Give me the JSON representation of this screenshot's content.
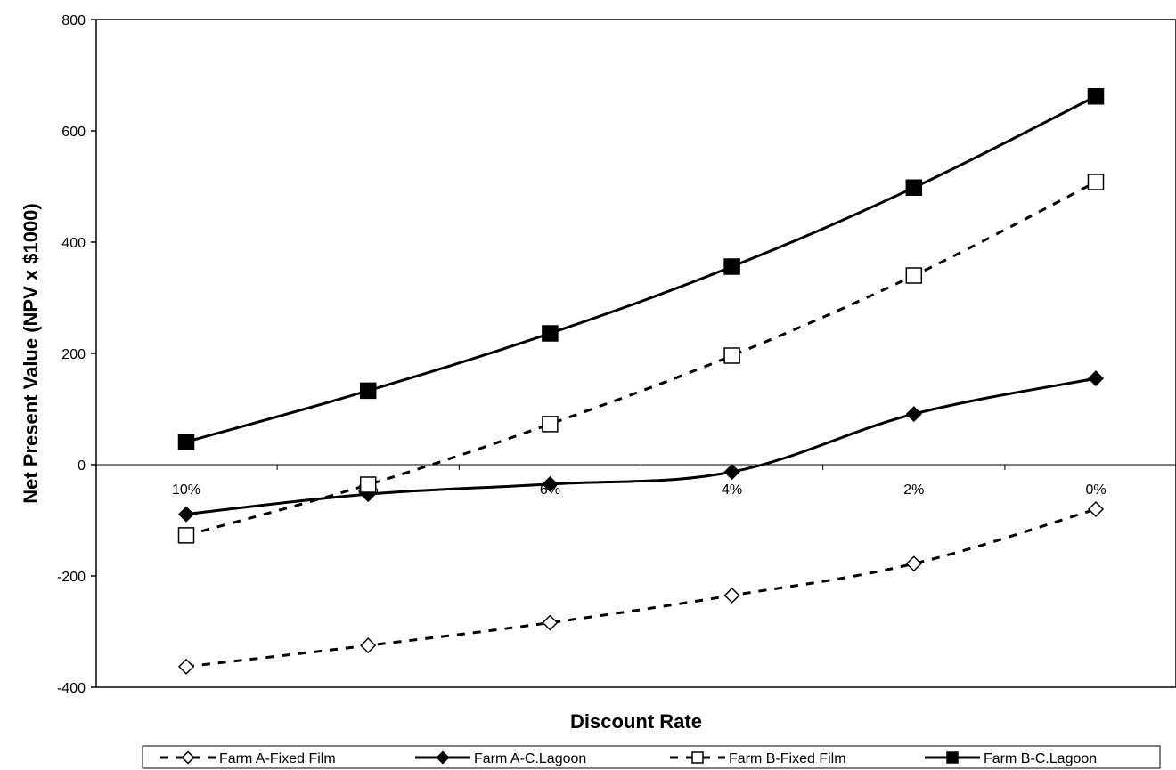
{
  "chart_data": {
    "type": "line",
    "title": "",
    "xlabel": "Discount Rate",
    "ylabel": "Net Present Value (NPV x $1000)",
    "categories": [
      "10%",
      "8%",
      "6%",
      "4%",
      "2%",
      "0%"
    ],
    "ylim": [
      -400,
      800
    ],
    "yticks": [
      "800",
      "600",
      "400",
      "200",
      "0",
      "-200",
      "-400"
    ],
    "grid": false,
    "legend_position": "bottom",
    "series": [
      {
        "name": "Farm A-Fixed Film",
        "values": [
          -363,
          -325,
          -284,
          -235,
          -178,
          -80
        ],
        "line": "dashed",
        "marker": "diamond",
        "fill": "open"
      },
      {
        "name": "Farm A-C.Lagoon",
        "values": [
          -89,
          -53,
          -35,
          -13,
          91,
          155
        ],
        "line": "solid",
        "marker": "diamond",
        "fill": "filled"
      },
      {
        "name": "Farm B-Fixed Film",
        "values": [
          -127,
          -36,
          73,
          196,
          340,
          508
        ],
        "line": "dashed",
        "marker": "square",
        "fill": "open"
      },
      {
        "name": "Farm B-C.Lagoon",
        "values": [
          41,
          133,
          236,
          356,
          498,
          662
        ],
        "line": "solid",
        "marker": "square",
        "fill": "filled"
      }
    ],
    "colors": {
      "line": "#000000",
      "background": "#ffffff"
    }
  }
}
